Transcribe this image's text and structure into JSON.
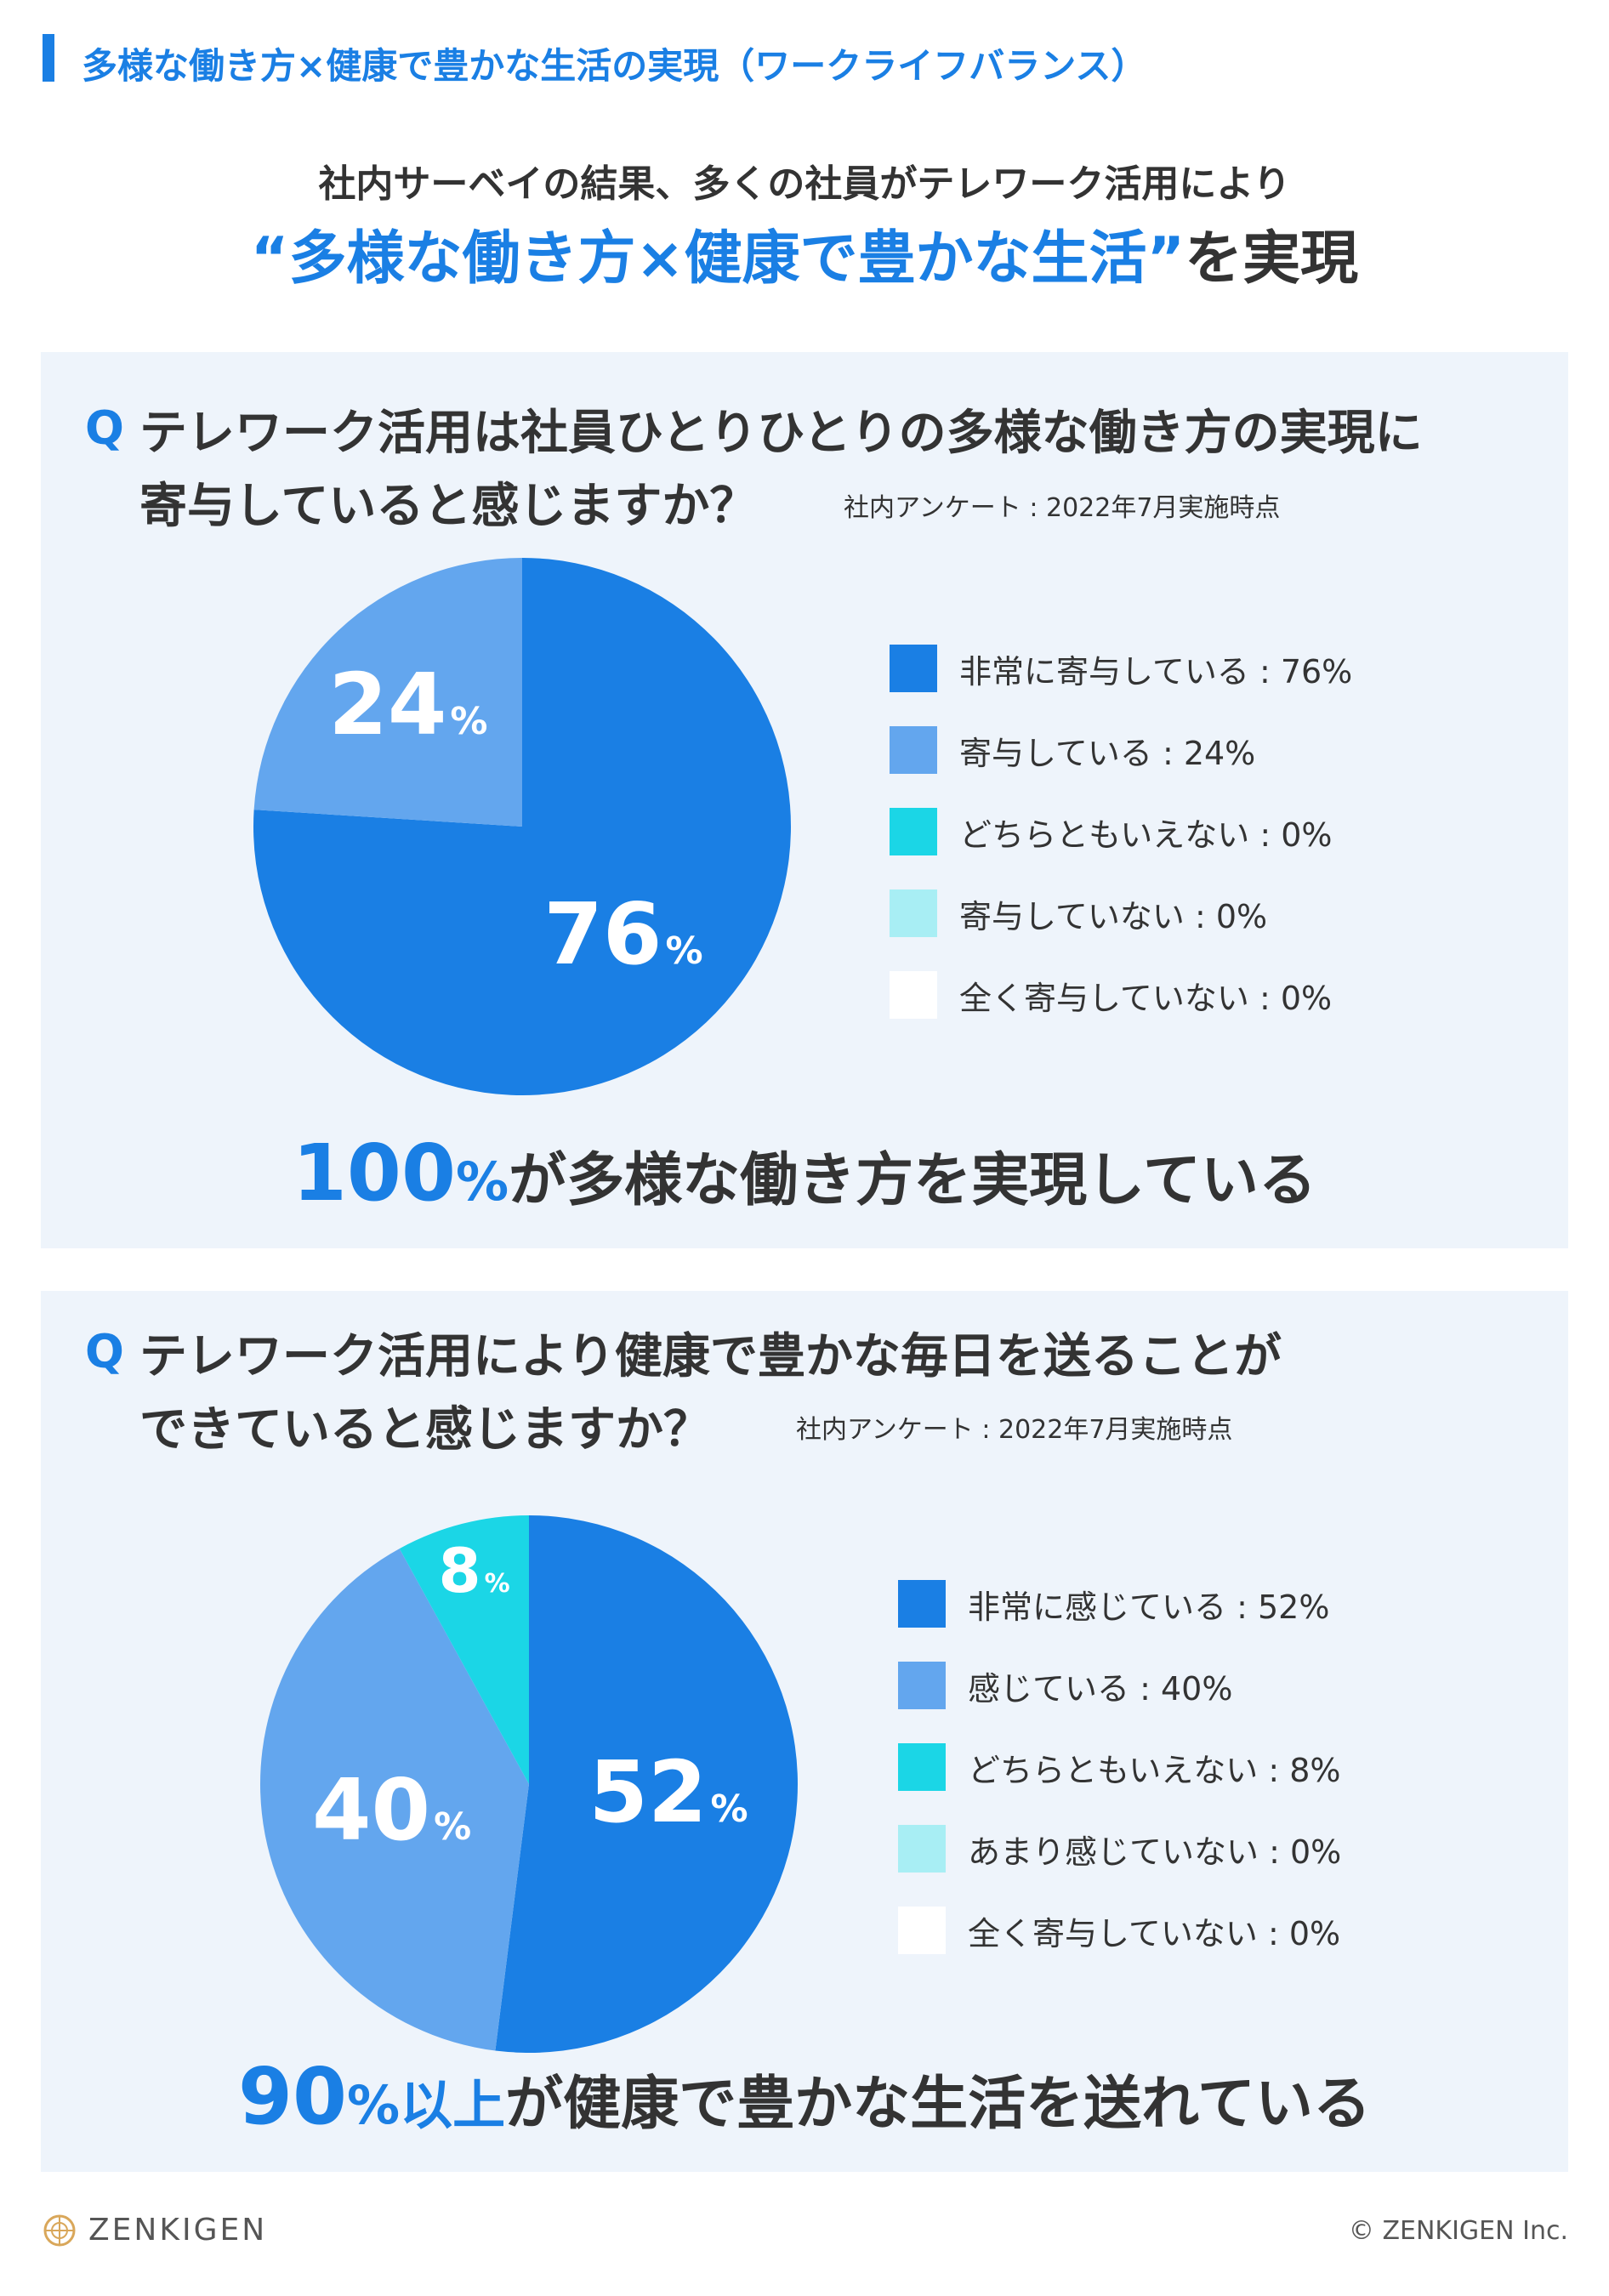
{
  "header": {
    "title": "多様な働き方×健康で豊かな生活の実現（ワークライフバランス）"
  },
  "hero": {
    "line1": "社内サーベイの結果、多くの社員がテレワーク活用により",
    "line2_accent": "“多様な働き方×健康で豊かな生活”",
    "line2_rest": "を実現"
  },
  "panels": [
    {
      "q_mark": "Q",
      "question_line1": "テレワーク活用は社員ひとりひとりの多様な働き方の実現に",
      "question_line2": "寄与していると感じますか？",
      "survey_note": "社内アンケート : 2022年7月実施時点",
      "conclusion": {
        "big": "100",
        "unit": "%",
        "rest": "が多様な働き方を実現している"
      }
    },
    {
      "q_mark": "Q",
      "question_line1": "テレワーク活用により健康で豊かな毎日を送ることが",
      "question_line2": "できていると感じますか？",
      "survey_note": "社内アンケート : 2022年7月実施時点",
      "conclusion": {
        "big": "90",
        "unit": "%以上",
        "rest": "が健康で豊かな生活を送れている"
      }
    }
  ],
  "chart_data": [
    {
      "type": "pie",
      "title": "テレワーク活用は社員ひとりひとりの多様な働き方の実現に寄与していると感じますか？",
      "slices": [
        {
          "label": "非常に寄与している",
          "value": 76,
          "color": "#1a7fe4",
          "legend": "非常に寄与している : 76%",
          "slice_label": "76",
          "slice_unit": "%"
        },
        {
          "label": "寄与している",
          "value": 24,
          "color": "#63a6ee",
          "legend": "寄与している : 24%",
          "slice_label": "24",
          "slice_unit": "%"
        },
        {
          "label": "どちらともいえない",
          "value": 0,
          "color": "#1bd6e6",
          "legend": "どちらともいえない : 0%"
        },
        {
          "label": "寄与していない",
          "value": 0,
          "color": "#a8eef4",
          "legend": "寄与していない : 0%"
        },
        {
          "label": "全く寄与していない",
          "value": 0,
          "color": "#ffffff",
          "legend": "全く寄与していない : 0%"
        }
      ],
      "legend_position": "right"
    },
    {
      "type": "pie",
      "title": "テレワーク活用により健康で豊かな毎日を送ることができていると感じますか？",
      "slices": [
        {
          "label": "非常に感じている",
          "value": 52,
          "color": "#1a7fe4",
          "legend": "非常に感じている : 52%",
          "slice_label": "52",
          "slice_unit": "%"
        },
        {
          "label": "感じている",
          "value": 40,
          "color": "#63a6ee",
          "legend": "感じている : 40%",
          "slice_label": "40",
          "slice_unit": "%"
        },
        {
          "label": "どちらともいえない",
          "value": 8,
          "color": "#1bd6e6",
          "legend": "どちらともいえない : 8%",
          "slice_label": "8",
          "slice_unit": "%"
        },
        {
          "label": "あまり感じていない",
          "value": 0,
          "color": "#a8eef4",
          "legend": "あまり感じていない : 0%"
        },
        {
          "label": "全く寄与していない",
          "value": 0,
          "color": "#ffffff",
          "legend": "全く寄与していない : 0%"
        }
      ],
      "legend_position": "right"
    }
  ],
  "footer": {
    "brand": "ZENKIGEN",
    "copyright": "© ZENKIGEN Inc.",
    "logo_icon": "zenkigen-emblem-icon",
    "logo_color": "#d9a75a"
  }
}
